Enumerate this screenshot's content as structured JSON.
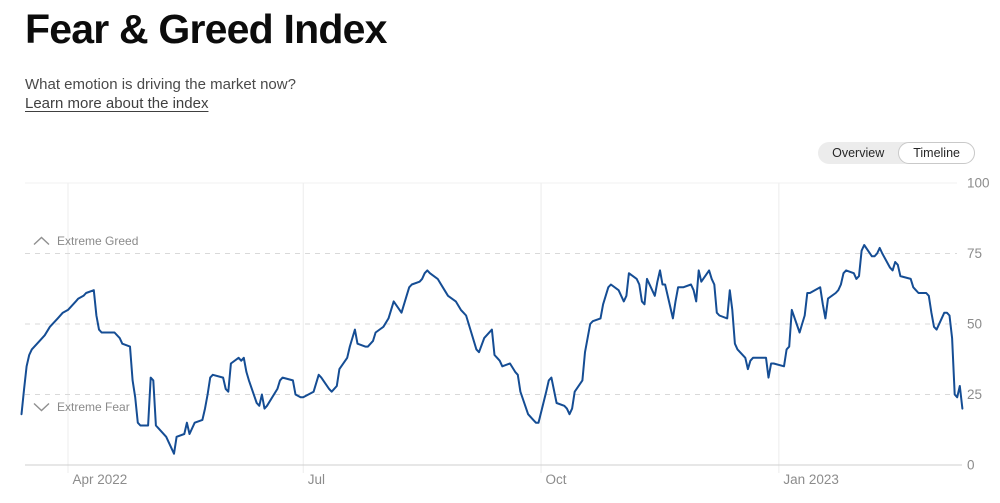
{
  "header": {
    "title": "Fear & Greed Index",
    "subtitle": "What emotion is driving the market now?",
    "link_label": "Learn more about the index"
  },
  "toggle": {
    "options": [
      "Overview",
      "Timeline"
    ],
    "selected": "Timeline"
  },
  "chart_data": {
    "type": "line",
    "series_name": "Fear & Greed Index",
    "ylim": [
      0,
      100
    ],
    "yticks": [
      0,
      25,
      50,
      75,
      100
    ],
    "xticks": [
      {
        "date": "2022-04-01",
        "label": "Apr 2022"
      },
      {
        "date": "2022-07-01",
        "label": "Jul"
      },
      {
        "date": "2022-10-01",
        "label": "Oct"
      },
      {
        "date": "2023-01-01",
        "label": "Jan 2023"
      }
    ],
    "zones": [
      {
        "label": "Extreme Greed",
        "at": 75,
        "direction": "up",
        "icon": "chevron-up-icon"
      },
      {
        "label": "Extreme Fear",
        "at": 25,
        "direction": "down",
        "icon": "chevron-down-icon"
      }
    ],
    "line_color": "#154d94",
    "axis_label_color": "#8c8c8c",
    "grid": {
      "horizontal": "dashed",
      "vertical": "solid",
      "legend": "none"
    },
    "points": [
      [
        "2022-03-14",
        18
      ],
      [
        "2022-03-15",
        27
      ],
      [
        "2022-03-16",
        35
      ],
      [
        "2022-03-17",
        39
      ],
      [
        "2022-03-18",
        41
      ],
      [
        "2022-03-21",
        44
      ],
      [
        "2022-03-23",
        46
      ],
      [
        "2022-03-25",
        49
      ],
      [
        "2022-03-28",
        52
      ],
      [
        "2022-03-30",
        54
      ],
      [
        "2022-04-01",
        55
      ],
      [
        "2022-04-04",
        58
      ],
      [
        "2022-04-05",
        59
      ],
      [
        "2022-04-07",
        60
      ],
      [
        "2022-04-08",
        61
      ],
      [
        "2022-04-11",
        62
      ],
      [
        "2022-04-12",
        53
      ],
      [
        "2022-04-13",
        48
      ],
      [
        "2022-04-14",
        47
      ],
      [
        "2022-04-19",
        47
      ],
      [
        "2022-04-21",
        45
      ],
      [
        "2022-04-22",
        43
      ],
      [
        "2022-04-25",
        42
      ],
      [
        "2022-04-26",
        30
      ],
      [
        "2022-04-27",
        24
      ],
      [
        "2022-04-28",
        15
      ],
      [
        "2022-04-29",
        14
      ],
      [
        "2022-05-02",
        14
      ],
      [
        "2022-05-03",
        31
      ],
      [
        "2022-05-04",
        30
      ],
      [
        "2022-05-05",
        14
      ],
      [
        "2022-05-06",
        13
      ],
      [
        "2022-05-09",
        10
      ],
      [
        "2022-05-10",
        8
      ],
      [
        "2022-05-12",
        4
      ],
      [
        "2022-05-13",
        10
      ],
      [
        "2022-05-16",
        11
      ],
      [
        "2022-05-17",
        15
      ],
      [
        "2022-05-18",
        11
      ],
      [
        "2022-05-20",
        15
      ],
      [
        "2022-05-23",
        16
      ],
      [
        "2022-05-24",
        20
      ],
      [
        "2022-05-25",
        25
      ],
      [
        "2022-05-26",
        31
      ],
      [
        "2022-05-27",
        32
      ],
      [
        "2022-05-31",
        31
      ],
      [
        "2022-06-01",
        27
      ],
      [
        "2022-06-02",
        26
      ],
      [
        "2022-06-03",
        36
      ],
      [
        "2022-06-06",
        38
      ],
      [
        "2022-06-07",
        37
      ],
      [
        "2022-06-08",
        38
      ],
      [
        "2022-06-09",
        33
      ],
      [
        "2022-06-10",
        30
      ],
      [
        "2022-06-13",
        22
      ],
      [
        "2022-06-14",
        21
      ],
      [
        "2022-06-15",
        25
      ],
      [
        "2022-06-16",
        20
      ],
      [
        "2022-06-17",
        21
      ],
      [
        "2022-06-21",
        27
      ],
      [
        "2022-06-22",
        30
      ],
      [
        "2022-06-23",
        31
      ],
      [
        "2022-06-27",
        30
      ],
      [
        "2022-06-28",
        25
      ],
      [
        "2022-06-30",
        24
      ],
      [
        "2022-07-01",
        24
      ],
      [
        "2022-07-05",
        26
      ],
      [
        "2022-07-07",
        32
      ],
      [
        "2022-07-08",
        31
      ],
      [
        "2022-07-11",
        27
      ],
      [
        "2022-07-12",
        26
      ],
      [
        "2022-07-14",
        28
      ],
      [
        "2022-07-15",
        34
      ],
      [
        "2022-07-18",
        38
      ],
      [
        "2022-07-19",
        42
      ],
      [
        "2022-07-21",
        48
      ],
      [
        "2022-07-22",
        43
      ],
      [
        "2022-07-25",
        42
      ],
      [
        "2022-07-26",
        42
      ],
      [
        "2022-07-28",
        44
      ],
      [
        "2022-07-29",
        47
      ],
      [
        "2022-08-01",
        49
      ],
      [
        "2022-08-03",
        52
      ],
      [
        "2022-08-04",
        55
      ],
      [
        "2022-08-05",
        58
      ],
      [
        "2022-08-08",
        54
      ],
      [
        "2022-08-10",
        60
      ],
      [
        "2022-08-11",
        63
      ],
      [
        "2022-08-12",
        64
      ],
      [
        "2022-08-15",
        65
      ],
      [
        "2022-08-16",
        66
      ],
      [
        "2022-08-17",
        68
      ],
      [
        "2022-08-18",
        69
      ],
      [
        "2022-08-19",
        68
      ],
      [
        "2022-08-22",
        66
      ],
      [
        "2022-08-24",
        63
      ],
      [
        "2022-08-26",
        60
      ],
      [
        "2022-08-29",
        58
      ],
      [
        "2022-08-31",
        55
      ],
      [
        "2022-09-01",
        54
      ],
      [
        "2022-09-02",
        53
      ],
      [
        "2022-09-06",
        41
      ],
      [
        "2022-09-07",
        40
      ],
      [
        "2022-09-09",
        45
      ],
      [
        "2022-09-12",
        48
      ],
      [
        "2022-09-13",
        39
      ],
      [
        "2022-09-14",
        38
      ],
      [
        "2022-09-15",
        37
      ],
      [
        "2022-09-16",
        35
      ],
      [
        "2022-09-19",
        36
      ],
      [
        "2022-09-21",
        33
      ],
      [
        "2022-09-22",
        32
      ],
      [
        "2022-09-23",
        26
      ],
      [
        "2022-09-26",
        18
      ],
      [
        "2022-09-28",
        16
      ],
      [
        "2022-09-29",
        15
      ],
      [
        "2022-09-30",
        15
      ],
      [
        "2022-10-03",
        26
      ],
      [
        "2022-10-04",
        30
      ],
      [
        "2022-10-05",
        31
      ],
      [
        "2022-10-07",
        22
      ],
      [
        "2022-10-10",
        21
      ],
      [
        "2022-10-11",
        20
      ],
      [
        "2022-10-12",
        18
      ],
      [
        "2022-10-13",
        20
      ],
      [
        "2022-10-14",
        26
      ],
      [
        "2022-10-17",
        30
      ],
      [
        "2022-10-18",
        40
      ],
      [
        "2022-10-20",
        50
      ],
      [
        "2022-10-21",
        51
      ],
      [
        "2022-10-24",
        52
      ],
      [
        "2022-10-25",
        57
      ],
      [
        "2022-10-26",
        60
      ],
      [
        "2022-10-27",
        63
      ],
      [
        "2022-10-28",
        64
      ],
      [
        "2022-10-31",
        62
      ],
      [
        "2022-11-01",
        60
      ],
      [
        "2022-11-02",
        58
      ],
      [
        "2022-11-03",
        60
      ],
      [
        "2022-11-04",
        68
      ],
      [
        "2022-11-07",
        66
      ],
      [
        "2022-11-08",
        64
      ],
      [
        "2022-11-09",
        58
      ],
      [
        "2022-11-10",
        57
      ],
      [
        "2022-11-11",
        66
      ],
      [
        "2022-11-14",
        60
      ],
      [
        "2022-11-15",
        65
      ],
      [
        "2022-11-16",
        69
      ],
      [
        "2022-11-17",
        64
      ],
      [
        "2022-11-18",
        64
      ],
      [
        "2022-11-21",
        52
      ],
      [
        "2022-11-22",
        58
      ],
      [
        "2022-11-23",
        63
      ],
      [
        "2022-11-25",
        63
      ],
      [
        "2022-11-28",
        64
      ],
      [
        "2022-11-29",
        62
      ],
      [
        "2022-11-30",
        58
      ],
      [
        "2022-12-01",
        69
      ],
      [
        "2022-12-02",
        65
      ],
      [
        "2022-12-05",
        69
      ],
      [
        "2022-12-06",
        66
      ],
      [
        "2022-12-07",
        64
      ],
      [
        "2022-12-08",
        54
      ],
      [
        "2022-12-09",
        53
      ],
      [
        "2022-12-12",
        52
      ],
      [
        "2022-12-13",
        62
      ],
      [
        "2022-12-14",
        55
      ],
      [
        "2022-12-15",
        43
      ],
      [
        "2022-12-16",
        41
      ],
      [
        "2022-12-19",
        38
      ],
      [
        "2022-12-20",
        34
      ],
      [
        "2022-12-21",
        37
      ],
      [
        "2022-12-22",
        38
      ],
      [
        "2022-12-23",
        38
      ],
      [
        "2022-12-27",
        38
      ],
      [
        "2022-12-28",
        31
      ],
      [
        "2022-12-29",
        36
      ],
      [
        "2022-12-30",
        36
      ],
      [
        "2023-01-03",
        35
      ],
      [
        "2023-01-04",
        41
      ],
      [
        "2023-01-05",
        42
      ],
      [
        "2023-01-06",
        55
      ],
      [
        "2023-01-09",
        47
      ],
      [
        "2023-01-10",
        50
      ],
      [
        "2023-01-11",
        53
      ],
      [
        "2023-01-12",
        61
      ],
      [
        "2023-01-13",
        61
      ],
      [
        "2023-01-17",
        63
      ],
      [
        "2023-01-18",
        57
      ],
      [
        "2023-01-19",
        52
      ],
      [
        "2023-01-20",
        59
      ],
      [
        "2023-01-23",
        61
      ],
      [
        "2023-01-24",
        62
      ],
      [
        "2023-01-25",
        64
      ],
      [
        "2023-01-26",
        68
      ],
      [
        "2023-01-27",
        69
      ],
      [
        "2023-01-30",
        68
      ],
      [
        "2023-01-31",
        66
      ],
      [
        "2023-02-01",
        67
      ],
      [
        "2023-02-02",
        76
      ],
      [
        "2023-02-03",
        78
      ],
      [
        "2023-02-06",
        74
      ],
      [
        "2023-02-07",
        74
      ],
      [
        "2023-02-08",
        75
      ],
      [
        "2023-02-09",
        77
      ],
      [
        "2023-02-10",
        75
      ],
      [
        "2023-02-13",
        70
      ],
      [
        "2023-02-14",
        69
      ],
      [
        "2023-02-15",
        72
      ],
      [
        "2023-02-16",
        71
      ],
      [
        "2023-02-17",
        67
      ],
      [
        "2023-02-21",
        66
      ],
      [
        "2023-02-22",
        63
      ],
      [
        "2023-02-23",
        62
      ],
      [
        "2023-02-24",
        61
      ],
      [
        "2023-02-27",
        61
      ],
      [
        "2023-02-28",
        60
      ],
      [
        "2023-03-01",
        54
      ],
      [
        "2023-03-02",
        49
      ],
      [
        "2023-03-03",
        48
      ],
      [
        "2023-03-06",
        54
      ],
      [
        "2023-03-07",
        54
      ],
      [
        "2023-03-08",
        53
      ],
      [
        "2023-03-09",
        45
      ],
      [
        "2023-03-10",
        25
      ],
      [
        "2023-03-11",
        24
      ],
      [
        "2023-03-12",
        28
      ],
      [
        "2023-03-13",
        20
      ]
    ]
  }
}
